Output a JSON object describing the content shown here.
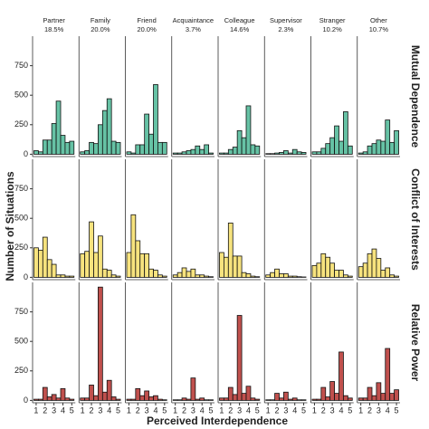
{
  "chart_data": {
    "type": "bar",
    "xlabel": "Perceived Interdependence",
    "ylabel": "Number of Situations",
    "columns": [
      "Partner",
      "Family",
      "Friend",
      "Acquaintance",
      "Colleague",
      "Supervisor",
      "Stranger",
      "Other"
    ],
    "column_shares": [
      "18.5%",
      "20.0%",
      "20.0%",
      "3.7%",
      "14.6%",
      "2.3%",
      "10.2%",
      "10.7%"
    ],
    "x": [
      1,
      1.5,
      2,
      2.5,
      3,
      3.5,
      4,
      4.5,
      5
    ],
    "xlim": [
      0.6,
      5.4
    ],
    "xticks": [
      1,
      2,
      3,
      4,
      5
    ],
    "ylim": [
      -20,
      1000
    ],
    "yticks": [
      0,
      250,
      500,
      750
    ],
    "series": [
      {
        "name": "Mutual Dependence",
        "color": "#66c2a5",
        "values": [
          [
            30,
            20,
            120,
            120,
            260,
            450,
            160,
            100,
            110
          ],
          [
            20,
            30,
            100,
            90,
            250,
            370,
            470,
            110,
            100
          ],
          [
            20,
            10,
            80,
            80,
            340,
            170,
            590,
            100,
            100
          ],
          [
            10,
            10,
            20,
            30,
            40,
            70,
            40,
            80,
            10
          ],
          [
            10,
            10,
            40,
            60,
            200,
            140,
            410,
            80,
            70
          ],
          [
            5,
            5,
            10,
            15,
            30,
            10,
            40,
            20,
            15
          ],
          [
            20,
            20,
            50,
            90,
            140,
            240,
            110,
            360,
            70
          ],
          [
            10,
            20,
            70,
            90,
            120,
            110,
            290,
            100,
            200
          ]
        ]
      },
      {
        "name": "Conflict of Interests",
        "color": "#f7e37e",
        "values": [
          [
            250,
            230,
            340,
            150,
            110,
            20,
            20,
            10,
            10
          ],
          [
            200,
            220,
            470,
            210,
            350,
            70,
            60,
            20,
            10
          ],
          [
            210,
            530,
            310,
            200,
            200,
            70,
            60,
            20,
            10
          ],
          [
            20,
            40,
            80,
            50,
            70,
            20,
            20,
            10,
            5
          ],
          [
            210,
            170,
            460,
            180,
            180,
            40,
            30,
            10,
            5
          ],
          [
            20,
            40,
            70,
            30,
            30,
            10,
            10,
            5,
            3
          ],
          [
            100,
            120,
            200,
            170,
            120,
            60,
            60,
            20,
            10
          ],
          [
            90,
            120,
            200,
            240,
            160,
            60,
            80,
            20,
            10
          ]
        ]
      },
      {
        "name": "Relative Power",
        "color": "#c0504d",
        "values": [
          [
            10,
            10,
            110,
            30,
            50,
            20,
            100,
            20,
            10
          ],
          [
            20,
            20,
            130,
            40,
            960,
            70,
            170,
            30,
            10
          ],
          [
            10,
            10,
            100,
            40,
            80,
            30,
            40,
            10,
            5
          ],
          [
            5,
            5,
            20,
            10,
            190,
            10,
            20,
            5,
            5
          ],
          [
            20,
            20,
            110,
            50,
            720,
            60,
            120,
            20,
            10
          ],
          [
            5,
            5,
            60,
            20,
            70,
            10,
            20,
            5,
            5
          ],
          [
            10,
            10,
            110,
            30,
            160,
            60,
            410,
            40,
            20
          ],
          [
            20,
            20,
            110,
            40,
            150,
            60,
            440,
            60,
            90
          ]
        ]
      }
    ]
  }
}
